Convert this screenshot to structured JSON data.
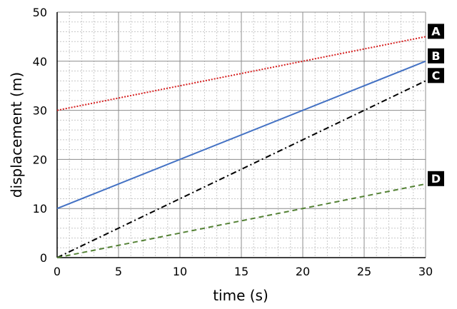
{
  "chart_data": {
    "type": "line",
    "title": "",
    "xlabel": "time (s)",
    "ylabel": "displacement (m)",
    "xlim": [
      0,
      30
    ],
    "ylim": [
      0,
      50
    ],
    "x_ticks": [
      0,
      5,
      10,
      15,
      20,
      25,
      30
    ],
    "y_ticks": [
      0,
      10,
      20,
      30,
      40,
      50
    ],
    "x_minor_step": 1,
    "y_minor_step": 2,
    "grid": true,
    "series": [
      {
        "name": "A",
        "x": [
          0,
          30
        ],
        "y": [
          30,
          45
        ],
        "color": "#d62020",
        "style": "dotted"
      },
      {
        "name": "B",
        "x": [
          0,
          30
        ],
        "y": [
          10,
          40
        ],
        "color": "#4472c4",
        "style": "solid"
      },
      {
        "name": "C",
        "x": [
          0,
          30
        ],
        "y": [
          0,
          36
        ],
        "color": "#000000",
        "style": "dashdot"
      },
      {
        "name": "D",
        "x": [
          0,
          30
        ],
        "y": [
          0,
          15
        ],
        "color": "#548235",
        "style": "dashed"
      }
    ]
  }
}
